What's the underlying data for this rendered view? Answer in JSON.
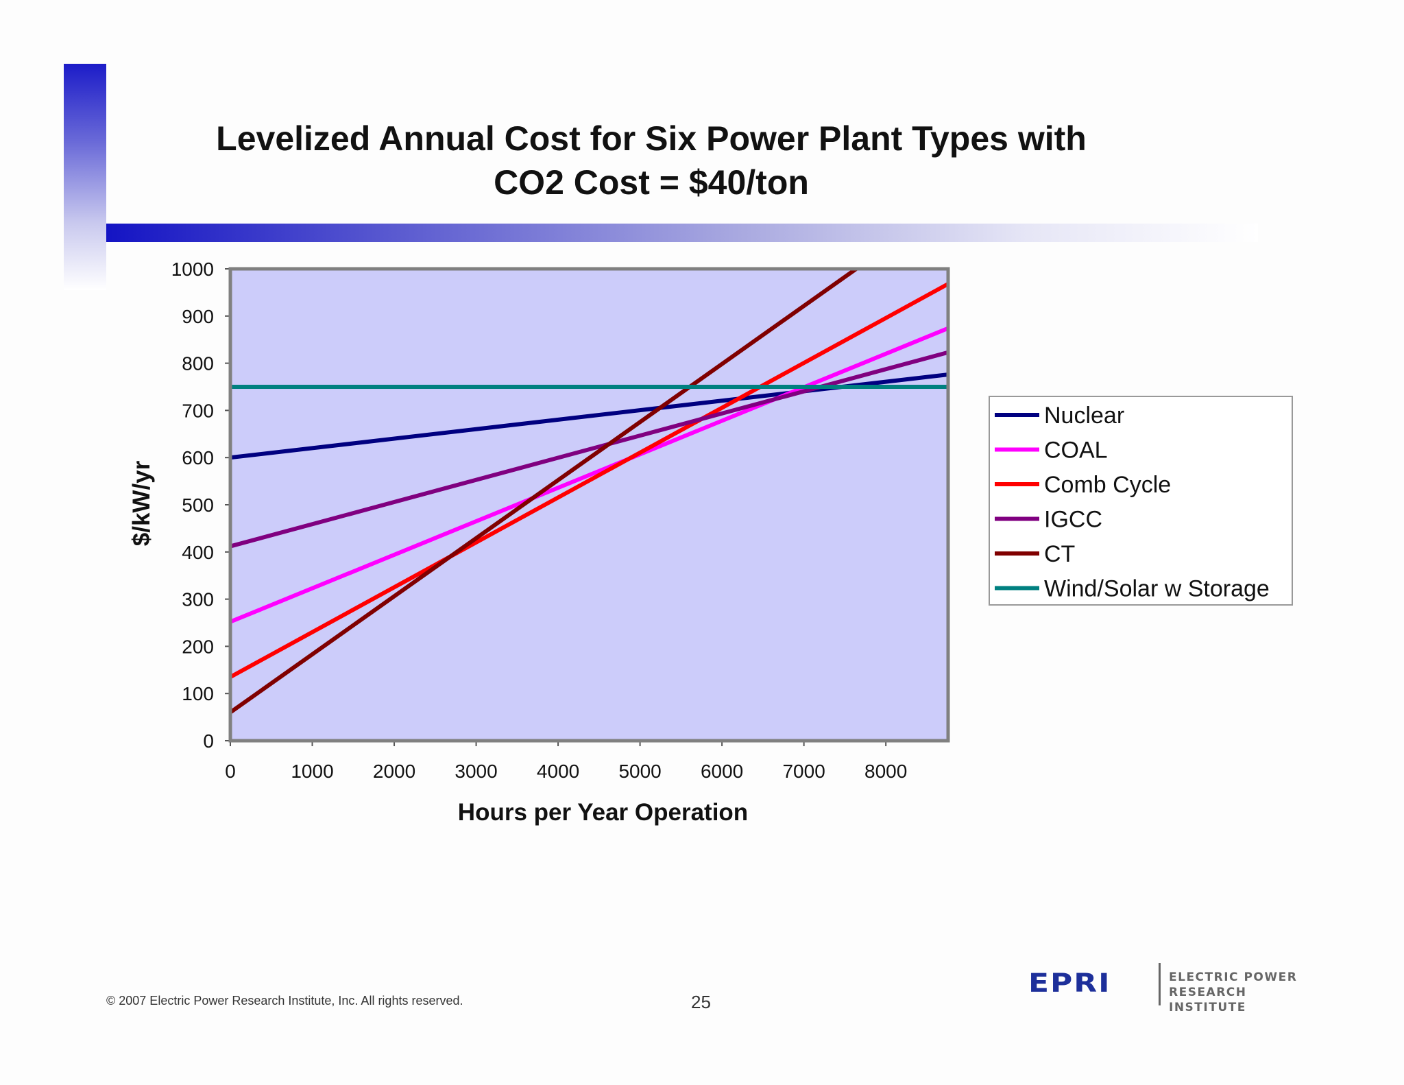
{
  "slide": {
    "title_line1": "Levelized Annual Cost for Six Power Plant Types with",
    "title_line2": "CO2 Cost = $40/ton",
    "footer_copyright": "© 2007 Electric Power Research Institute, Inc. All rights reserved.",
    "page_number": "25",
    "logo_word": "EPRI",
    "logo_sub_line1": "ELECTRIC POWER",
    "logo_sub_line2": "RESEARCH INSTITUTE",
    "colors": {
      "accent_blue": "#1414c4",
      "plot_background": "#ccccfa"
    }
  },
  "chart_data": {
    "type": "line",
    "title": "Levelized Annual Cost for Six Power Plant Types with CO2 Cost = $40/ton",
    "xlabel": "Hours per Year Operation",
    "ylabel": "$/kW/yr",
    "xlim": [
      0,
      8760
    ],
    "ylim": [
      0,
      1000
    ],
    "x_ticks": [
      0,
      1000,
      2000,
      3000,
      4000,
      5000,
      6000,
      7000,
      8000
    ],
    "y_ticks": [
      0,
      100,
      200,
      300,
      400,
      500,
      600,
      700,
      800,
      900,
      1000
    ],
    "grid": false,
    "legend_position": "right",
    "series": [
      {
        "name": "Nuclear",
        "color": "#000080",
        "x": [
          0,
          8760
        ],
        "y": [
          600,
          776
        ]
      },
      {
        "name": "COAL",
        "color": "#ff00ff",
        "x": [
          0,
          8760
        ],
        "y": [
          252,
          874
        ]
      },
      {
        "name": "Comb Cycle",
        "color": "#ff0000",
        "x": [
          0,
          8760
        ],
        "y": [
          135,
          968
        ]
      },
      {
        "name": "IGCC",
        "color": "#800080",
        "x": [
          0,
          8760
        ],
        "y": [
          412,
          823
        ]
      },
      {
        "name": "CT",
        "color": "#800000",
        "x": [
          0,
          8760
        ],
        "y": [
          60,
          1138
        ]
      },
      {
        "name": "Wind/Solar w Storage",
        "color": "#008080",
        "x": [
          0,
          8760
        ],
        "y": [
          750,
          750
        ]
      }
    ]
  }
}
